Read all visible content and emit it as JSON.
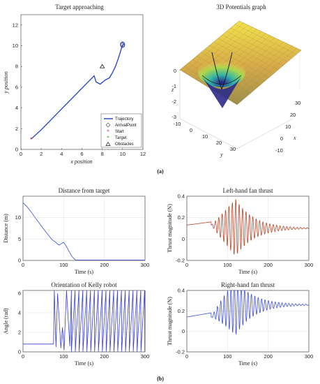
{
  "panel_labels": {
    "a": "(a)",
    "b": "(b)"
  },
  "chart_data": [
    {
      "id": "target-approaching",
      "type": "line",
      "title": "Target approaching",
      "xlabel": "x position",
      "ylabel": "y position",
      "xlim": [
        0,
        12
      ],
      "ylim": [
        0,
        13
      ],
      "xticks": [
        0,
        2,
        4,
        6,
        8,
        10,
        12
      ],
      "yticks": [
        0,
        2,
        4,
        6,
        8,
        10,
        12
      ],
      "legend_position": "bottom-right",
      "series": [
        {
          "name": "Trajectory",
          "color": "#1f3fbf",
          "x": [
            1.0,
            2.0,
            3.0,
            4.0,
            5.0,
            6.0,
            7.0,
            7.2,
            7.4,
            7.8,
            8.3,
            8.7,
            9.0,
            9.3,
            9.55,
            9.75,
            9.9,
            10.0,
            10.05,
            10.1
          ],
          "y": [
            1.0,
            1.9,
            2.9,
            3.9,
            4.9,
            5.9,
            6.9,
            7.1,
            6.5,
            6.3,
            6.7,
            6.9,
            7.4,
            8.0,
            8.7,
            9.3,
            9.8,
            10.05,
            10.15,
            10.1
          ]
        },
        {
          "name": "ArrivalPoint",
          "marker": "diamond",
          "color": "#555555",
          "x": [
            10.0
          ],
          "y": [
            10.1
          ]
        },
        {
          "name": "Start",
          "marker": "star",
          "color": "#cc3333",
          "x": [
            1.0
          ],
          "y": [
            1.0
          ]
        },
        {
          "name": "Target",
          "marker": "asterisk",
          "color": "#33aa33",
          "x": [
            10.1
          ],
          "y": [
            10.1
          ]
        },
        {
          "name": "Obstacles",
          "marker": "triangle",
          "color": "#111111",
          "x": [
            8.0
          ],
          "y": [
            8.0
          ]
        }
      ]
    },
    {
      "id": "potentials-3d",
      "type": "surface",
      "title": "3D Potentials graph",
      "xlabel": "x",
      "ylabel": "y",
      "zlabel": "z",
      "xticks": [
        -10,
        0,
        10,
        20,
        30
      ],
      "yticks": [
        -10,
        0,
        10,
        20,
        30
      ],
      "zticks": [
        0,
        -1,
        -2,
        -3
      ],
      "zlim": [
        -3,
        0
      ]
    },
    {
      "id": "distance-from-target",
      "type": "line",
      "title": "Distance from target",
      "xlabel": "Time (s)",
      "ylabel": "Distance (m)",
      "xlim": [
        0,
        300
      ],
      "ylim": [
        0,
        15
      ],
      "xticks": [
        0,
        100,
        200,
        300
      ],
      "yticks": [
        0,
        5,
        10
      ],
      "grid": true,
      "series": [
        {
          "color": "#3050d0",
          "x": [
            0,
            10,
            20,
            30,
            40,
            50,
            60,
            70,
            75,
            80,
            85,
            90,
            95,
            100,
            105,
            110,
            115,
            120,
            125,
            130,
            140,
            160,
            200,
            250,
            300
          ],
          "y": [
            13.5,
            12.5,
            11.3,
            10.0,
            8.7,
            7.4,
            6.2,
            5.0,
            4.6,
            4.3,
            3.8,
            3.6,
            4.0,
            4.2,
            3.5,
            2.7,
            1.8,
            1.0,
            0.4,
            0.1,
            0.1,
            0.1,
            0.1,
            0.1,
            0.1
          ]
        }
      ]
    },
    {
      "id": "left-fan-thrust",
      "type": "line",
      "title": "Left-hand fan thrust",
      "xlabel": "Time (s)",
      "ylabel": "Thrust magnitude (N)",
      "xlim": [
        0,
        300
      ],
      "ylim": [
        -0.2,
        0.4
      ],
      "xticks": [
        0,
        100,
        200,
        300
      ],
      "yticks": [
        -0.2,
        0,
        0.2,
        0.4
      ],
      "grid": true,
      "series": [
        {
          "color": "#b8452a",
          "base": 0.13,
          "final": 0.1,
          "onset": 60,
          "peak_time": 120,
          "peak": 0.4
        }
      ]
    },
    {
      "id": "kelly-orientation",
      "type": "line",
      "title": "Orientation of Kelly robot",
      "xlabel": "Time (s)",
      "ylabel": "Angle (rad)",
      "xlim": [
        0,
        300
      ],
      "ylim": [
        0,
        6.28
      ],
      "xticks": [
        0,
        100,
        200,
        300
      ],
      "yticks": [
        0,
        2,
        4,
        6
      ],
      "grid": true,
      "series": [
        {
          "color": "#3a3fd0",
          "initial": 0.8,
          "wrap_start": 75
        }
      ]
    },
    {
      "id": "right-fan-thrust",
      "type": "line",
      "title": "Right-hand fan thrust",
      "xlabel": "Time (s)",
      "ylabel": "Thrust magnitude (N)",
      "xlim": [
        0,
        300
      ],
      "ylim": [
        -0.2,
        0.4
      ],
      "xticks": [
        0,
        100,
        200,
        300
      ],
      "yticks": [
        -0.2,
        0,
        0.2,
        0.4
      ],
      "grid": true,
      "series": [
        {
          "color": "#3f4fd8",
          "base": 0.14,
          "final": 0.26,
          "onset": 60,
          "peak_time": 120,
          "peak": 0.4
        }
      ]
    }
  ]
}
